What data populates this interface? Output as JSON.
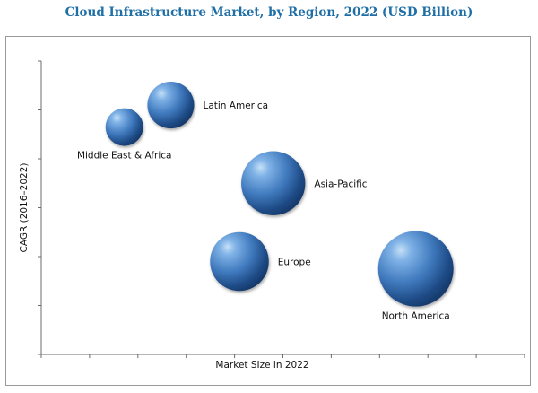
{
  "chart_data": {
    "type": "scatter",
    "subtype": "bubble",
    "title": "Cloud Infrastructure Market, by Region, 2022 (USD Billion)",
    "xlabel": "Market SIze in 2022",
    "ylabel": "CAGR (2016–2022)",
    "xlim": [
      0,
      10
    ],
    "ylim": [
      0,
      6
    ],
    "grid": false,
    "legend": "none",
    "bubble_color": "#3f79bd",
    "points": [
      {
        "label": "Middle East & Africa",
        "x": 1.72,
        "y": 4.65,
        "size": 0.5
      },
      {
        "label": "Latin America",
        "x": 2.68,
        "y": 5.1,
        "size": 0.62
      },
      {
        "label": "Asia-Pacific",
        "x": 4.8,
        "y": 3.5,
        "size": 0.85
      },
      {
        "label": "Europe",
        "x": 4.1,
        "y": 1.9,
        "size": 0.78
      },
      {
        "label": "North America",
        "x": 7.75,
        "y": 1.75,
        "size": 1.0
      }
    ]
  }
}
